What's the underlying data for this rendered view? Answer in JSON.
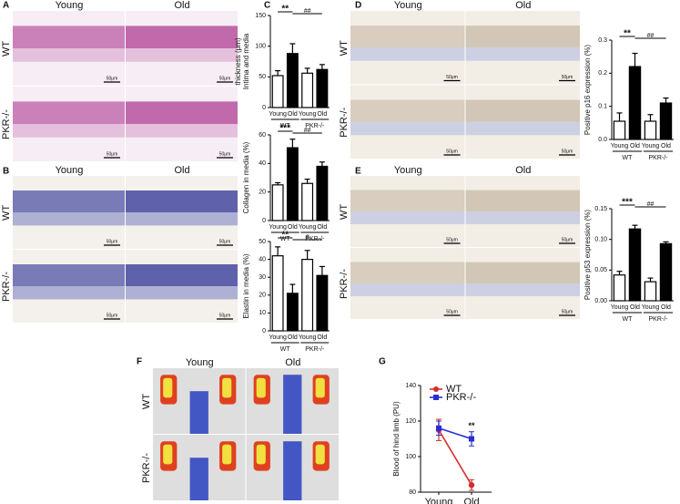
{
  "panels": [
    {
      "letter": "A",
      "columns": [
        "Young",
        "Old"
      ],
      "rows": [
        "WT",
        "PKR-/-"
      ],
      "scale_bar": "50μm"
    },
    {
      "letter": "B",
      "columns": [
        "Young",
        "Old"
      ],
      "rows": [
        "WT",
        "PKR-/-"
      ],
      "scale_bar": "50μm"
    },
    {
      "letter": "C"
    },
    {
      "letter": "D",
      "columns": [
        "Young",
        "Old"
      ],
      "rows": [
        "WT",
        "PKR-/-"
      ],
      "scale_bar": "50μm"
    },
    {
      "letter": "E",
      "columns": [
        "Young",
        "Old"
      ],
      "rows": [
        "WT",
        "PKR-/-"
      ],
      "scale_bar": "50μm"
    },
    {
      "letter": "F",
      "columns": [
        "Young",
        "Old"
      ],
      "rows": [
        "WT",
        "PKR-/-"
      ]
    },
    {
      "letter": "G"
    }
  ],
  "chart_data": [
    {
      "type": "bar",
      "ylabel": [
        "Intima and media",
        "thickness (μm)"
      ],
      "categories": [
        "Young",
        "Old",
        "Young",
        "Old"
      ],
      "groups": [
        "WT",
        "PKR-/-"
      ],
      "values": [
        52,
        88,
        56,
        62
      ],
      "errors": [
        8,
        16,
        8,
        8
      ],
      "colors": [
        "#ffffff",
        "#000000",
        "#ffffff",
        "#000000"
      ],
      "ylim": [
        0,
        150
      ],
      "yticks": [
        0,
        50,
        100,
        150
      ],
      "annotations": [
        "**",
        "##"
      ]
    },
    {
      "type": "bar",
      "ylabel": [
        "Collagen in media (%)"
      ],
      "categories": [
        "Young",
        "Old",
        "Young",
        "Old"
      ],
      "groups": [
        "WT",
        "PKR-/-"
      ],
      "values": [
        25,
        51,
        26,
        38
      ],
      "errors": [
        1.5,
        6,
        3,
        3
      ],
      "colors": [
        "#ffffff",
        "#000000",
        "#ffffff",
        "#000000"
      ],
      "ylim": [
        0,
        60
      ],
      "yticks": [
        0,
        20,
        40,
        60
      ],
      "annotations": [
        "***",
        "##"
      ]
    },
    {
      "type": "bar",
      "ylabel": [
        "Elastin in media (%)"
      ],
      "categories": [
        "Young",
        "Old",
        "Young",
        "Old"
      ],
      "groups": [
        "WT",
        "PKR-/-"
      ],
      "values": [
        42,
        21,
        40,
        31
      ],
      "errors": [
        5,
        5,
        5,
        5
      ],
      "colors": [
        "#ffffff",
        "#000000",
        "#ffffff",
        "#000000"
      ],
      "ylim": [
        0,
        50
      ],
      "yticks": [
        0,
        10,
        20,
        30,
        40,
        50
      ],
      "annotations": [
        "**",
        "#"
      ]
    },
    {
      "type": "bar",
      "ylabel": [
        "Positive p16 expression (%)"
      ],
      "categories": [
        "Young",
        "Old",
        "Young",
        "Old"
      ],
      "groups": [
        "WT",
        "PKR-/-"
      ],
      "values": [
        0.055,
        0.22,
        0.055,
        0.11
      ],
      "errors": [
        0.025,
        0.04,
        0.02,
        0.015
      ],
      "colors": [
        "#ffffff",
        "#000000",
        "#ffffff",
        "#000000"
      ],
      "ylim": [
        0,
        0.3
      ],
      "yticks": [
        {
          "value": 0,
          "label": "0.0"
        },
        0.1,
        0.2,
        0.3
      ],
      "annotations": [
        "**",
        "##"
      ]
    },
    {
      "type": "bar",
      "ylabel": [
        "Positive p53 expression (%)"
      ],
      "categories": [
        "Young",
        "Old",
        "Young",
        "Old"
      ],
      "groups": [
        "WT",
        "PKR-/-"
      ],
      "values": [
        0.042,
        0.117,
        0.031,
        0.093
      ],
      "errors": [
        0.006,
        0.006,
        0.006,
        0.003
      ],
      "colors": [
        "#ffffff",
        "#000000",
        "#ffffff",
        "#000000"
      ],
      "ylim": [
        0,
        0.15
      ],
      "yticks": [
        {
          "value": 0,
          "label": "0.00"
        },
        0.05,
        {
          "value": 0.1,
          "label": "0.10"
        },
        0.15
      ],
      "annotations": [
        "***",
        "##"
      ]
    },
    {
      "type": "line",
      "ylabel": [
        "Blood of hind limb (PU)"
      ],
      "categories": [
        "Young",
        "Old"
      ],
      "series": [
        {
          "name": "WT",
          "color": "#d62c2c",
          "marker": "circle",
          "values": [
            115,
            84
          ],
          "errors": [
            6,
            3
          ]
        },
        {
          "name": "PKR-/-",
          "color": "#2b2bd6",
          "marker": "square",
          "values": [
            116,
            110
          ],
          "errors": [
            4,
            4
          ]
        }
      ],
      "ylim": [
        80,
        140
      ],
      "yticks": [
        80,
        100,
        120,
        140
      ],
      "annotations": [
        "**"
      ]
    }
  ]
}
